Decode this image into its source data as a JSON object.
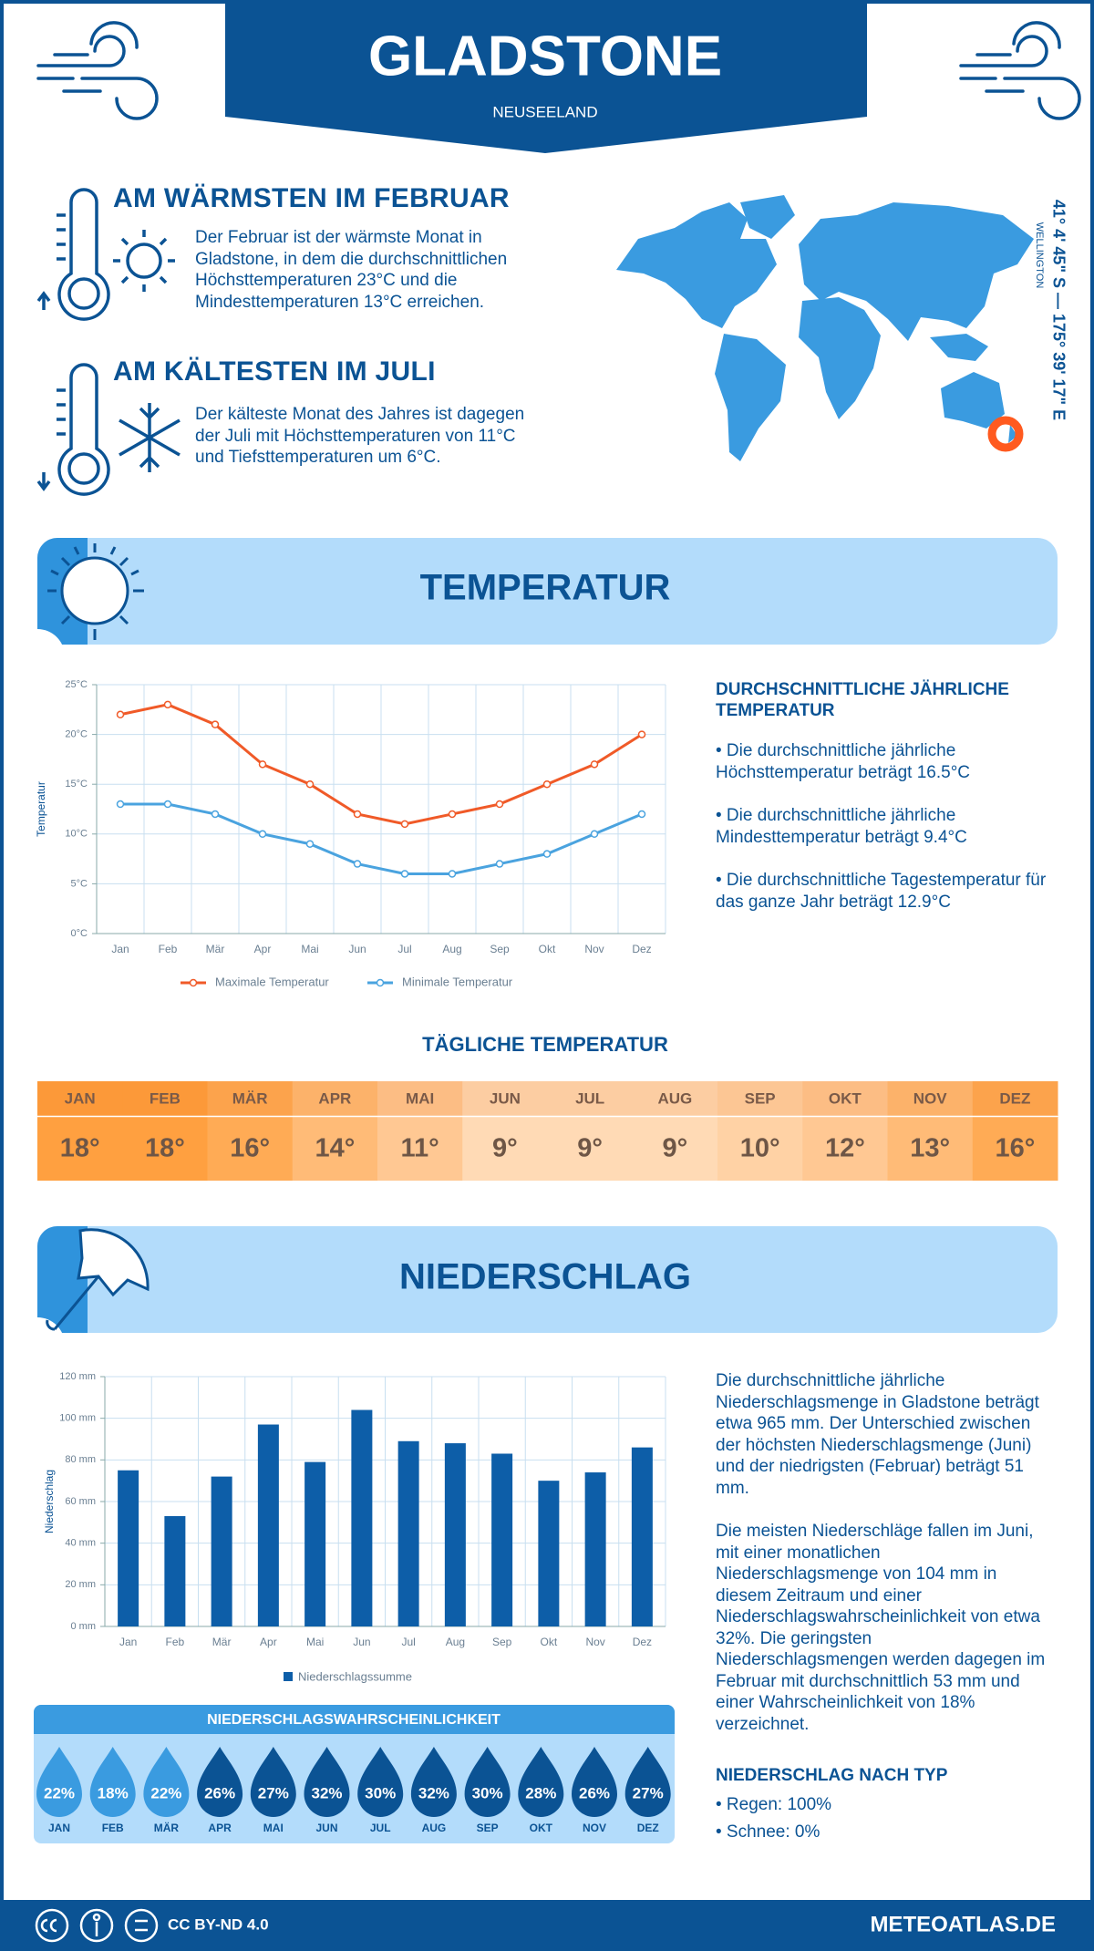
{
  "header": {
    "title": "GLADSTONE",
    "subtitle": "NEUSEELAND"
  },
  "location": {
    "coordinates": "41° 4' 45\" S — 175° 39' 17\" E",
    "region": "WELLINGTON"
  },
  "warmest": {
    "title": "AM WÄRMSTEN IM FEBRUAR",
    "text": "Der Februar ist der wärmste Monat in Gladstone, in dem die durchschnittlichen Höchsttemperaturen 23°C und die Mindesttemperaturen 13°C erreichen."
  },
  "coldest": {
    "title": "AM KÄLTESTEN IM JULI",
    "text": "Der kälteste Monat des Jahres ist dagegen der Juli mit Höchsttemperaturen von 11°C und Tiefsttemperaturen um 6°C."
  },
  "sections": {
    "temperature": "TEMPERATUR",
    "precipitation": "NIEDERSCHLAG"
  },
  "chart_data": [
    {
      "type": "line",
      "y_label": "Temperatur",
      "categories": [
        "Jan",
        "Feb",
        "Mär",
        "Apr",
        "Mai",
        "Jun",
        "Jul",
        "Aug",
        "Sep",
        "Okt",
        "Nov",
        "Dez"
      ],
      "series": [
        {
          "name": "Maximale Temperatur",
          "color": "#f05a28",
          "values": [
            22,
            23,
            21,
            17,
            15,
            12,
            11,
            12,
            13,
            15,
            17,
            20
          ]
        },
        {
          "name": "Minimale Temperatur",
          "color": "#4aa3df",
          "values": [
            13,
            13,
            12,
            10,
            9,
            7,
            6,
            6,
            7,
            8,
            10,
            12
          ]
        }
      ],
      "ylim": [
        0,
        25
      ],
      "yticks": [
        {
          "value": 0,
          "label": "0°C"
        },
        {
          "value": 5,
          "label": "5°C"
        },
        {
          "value": 10,
          "label": "10°C"
        },
        {
          "value": 15,
          "label": "15°C"
        },
        {
          "value": 20,
          "label": "20°C"
        },
        {
          "value": 25,
          "label": "25°C"
        }
      ],
      "grid": true,
      "legend": "bottom"
    },
    {
      "type": "bar",
      "y_label": "Niederschlag",
      "categories": [
        "Jan",
        "Feb",
        "Mär",
        "Apr",
        "Mai",
        "Jun",
        "Jul",
        "Aug",
        "Sep",
        "Okt",
        "Nov",
        "Dez"
      ],
      "series": [
        {
          "name": "Niederschlagssumme",
          "color": "#0d5ea8",
          "values": [
            75,
            53,
            72,
            97,
            79,
            104,
            89,
            88,
            83,
            70,
            74,
            86
          ]
        }
      ],
      "ylim": [
        0,
        120
      ],
      "yticks": [
        {
          "value": 0,
          "label": "0 mm"
        },
        {
          "value": 20,
          "label": "20 mm"
        },
        {
          "value": 40,
          "label": "40 mm"
        },
        {
          "value": 60,
          "label": "60 mm"
        },
        {
          "value": 80,
          "label": "80 mm"
        },
        {
          "value": 100,
          "label": "100 mm"
        },
        {
          "value": 120,
          "label": "120 mm"
        }
      ],
      "grid": true,
      "legend": "bottom"
    }
  ],
  "temperature_summary": {
    "title": "DURCHSCHNITTLICHE JÄHRLICHE TEMPERATUR",
    "items": [
      "• Die durchschnittliche jährliche Höchsttemperatur beträgt 16.5°C",
      "• Die durchschnittliche jährliche Mindesttemperatur beträgt 9.4°C",
      "• Die durchschnittliche Tagestemperatur für das ganze Jahr beträgt 12.9°C"
    ]
  },
  "daily_temperature": {
    "title": "TÄGLICHE TEMPERATUR",
    "months": [
      "JAN",
      "FEB",
      "MÄR",
      "APR",
      "MAI",
      "JUN",
      "JUL",
      "AUG",
      "SEP",
      "OKT",
      "NOV",
      "DEZ"
    ],
    "values": [
      18,
      18,
      16,
      14,
      11,
      9,
      9,
      9,
      10,
      12,
      13,
      16
    ],
    "value_labels": [
      "18°",
      "18°",
      "16°",
      "14°",
      "11°",
      "9°",
      "9°",
      "9°",
      "10°",
      "12°",
      "13°",
      "16°"
    ],
    "colors": [
      "#ffa040",
      "#ffa040",
      "#ffab55",
      "#ffbb77",
      "#ffc893",
      "#ffdab5",
      "#ffdab5",
      "#ffdab5",
      "#ffd2a5",
      "#ffc893",
      "#ffbb77",
      "#ffab55"
    ]
  },
  "precipitation_text": {
    "paragraphs": [
      "Die durchschnittliche jährliche Niederschlagsmenge in Gladstone beträgt etwa 965 mm. Der Unterschied zwischen der höchsten Niederschlagsmenge (Juni) und der niedrigsten (Februar) beträgt 51 mm.",
      "Die meisten Niederschläge fallen im Juni, mit einer monatlichen Niederschlagsmenge von 104 mm in diesem Zeitraum und einer Niederschlagswahrscheinlichkeit von etwa 32%. Die geringsten Niederschlagsmengen werden dagegen im Februar mit durchschnittlich 53 mm und einer Wahrscheinlichkeit von 18% verzeichnet."
    ],
    "type_title": "NIEDERSCHLAG NACH TYP",
    "type_items": [
      "• Regen: 100%",
      "• Schnee: 0%"
    ]
  },
  "probability": {
    "title": "NIEDERSCHLAGSWAHRSCHEINLICHKEIT",
    "months": [
      "JAN",
      "FEB",
      "MÄR",
      "APR",
      "MAI",
      "JUN",
      "JUL",
      "AUG",
      "SEP",
      "OKT",
      "NOV",
      "DEZ"
    ],
    "values": [
      22,
      18,
      22,
      26,
      27,
      32,
      30,
      32,
      30,
      28,
      26,
      27
    ],
    "value_labels": [
      "22%",
      "18%",
      "22%",
      "26%",
      "27%",
      "32%",
      "30%",
      "32%",
      "30%",
      "28%",
      "26%",
      "27%"
    ],
    "colors": [
      "#3a9be0",
      "#3a9be0",
      "#3a9be0",
      "#0b5394",
      "#0b5394",
      "#0b5394",
      "#0b5394",
      "#0b5394",
      "#0b5394",
      "#0b5394",
      "#0b5394",
      "#0b5394"
    ]
  },
  "footer": {
    "license": "CC BY-ND 4.0",
    "site": "METEOATLAS.DE"
  }
}
